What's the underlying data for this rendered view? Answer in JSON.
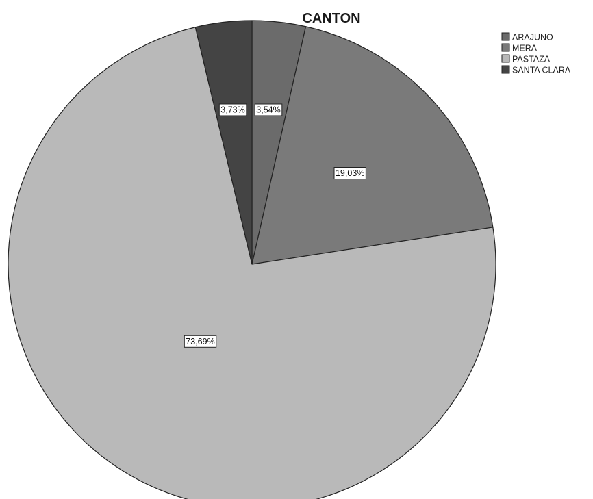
{
  "chart_data": {
    "type": "pie",
    "title": "CANTON",
    "legend_position": "top-right",
    "start_angle_deg": 0,
    "direction": "clockwise",
    "slices": [
      {
        "name": "ARAJUNO",
        "value": 3.54,
        "label": "3,54%",
        "color": "#6b6b6b"
      },
      {
        "name": "MERA",
        "value": 19.03,
        "label": "19,03%",
        "color": "#7a7a7a"
      },
      {
        "name": "PASTAZA",
        "value": 73.69,
        "label": "73,69%",
        "color": "#b9b9b9"
      },
      {
        "name": "SANTA CLARA",
        "value": 3.73,
        "label": "3,73%",
        "color": "#444444"
      }
    ]
  }
}
